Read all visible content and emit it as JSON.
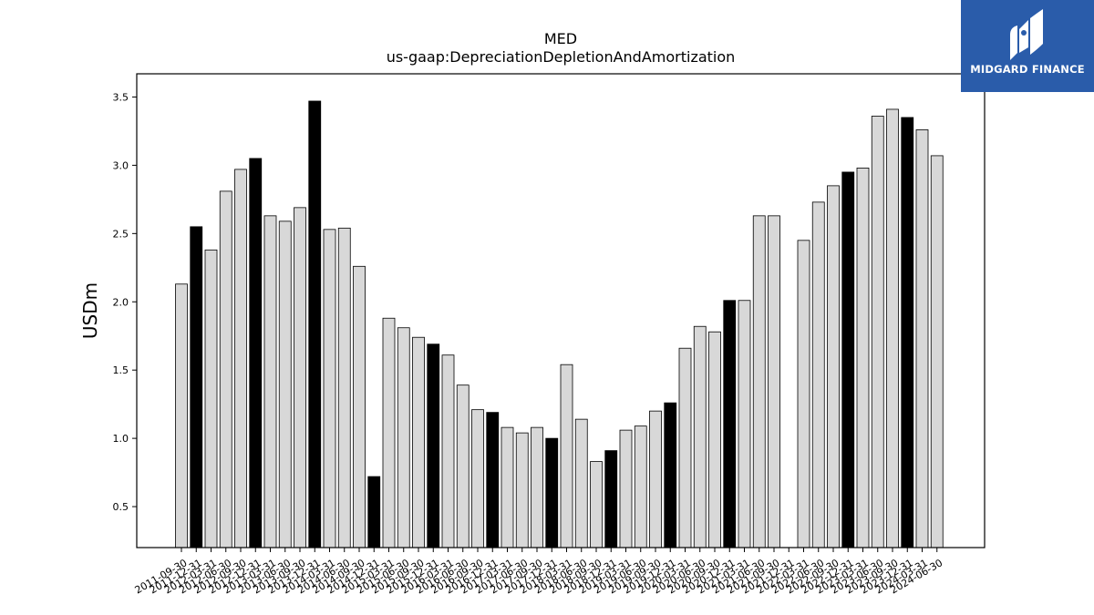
{
  "chart_data": {
    "type": "bar",
    "title": "MED",
    "subtitle": "us-gaap:DepreciationDepletionAndAmortization",
    "xlabel": "",
    "ylabel": "USDm",
    "ylim": [
      0.2,
      3.67
    ],
    "yticks": [
      "0.5",
      "1.0",
      "1.5",
      "2.0",
      "2.5",
      "3.0",
      "3.5"
    ],
    "grid": false,
    "colors": {
      "normal": "#d8d8d8",
      "highlight": "#000000",
      "edge": "#000000"
    },
    "categories": [
      "2011-09-30",
      "2011-12-31",
      "2012-03-31",
      "2012-06-30",
      "2012-09-30",
      "2012-12-31",
      "2013-03-31",
      "2013-06-30",
      "2013-09-30",
      "2013-12-31",
      "2014-03-31",
      "2014-06-30",
      "2014-09-30",
      "2014-12-31",
      "2015-03-31",
      "2015-06-30",
      "2015-09-30",
      "2015-12-31",
      "2016-03-31",
      "2016-06-30",
      "2016-09-30",
      "2016-12-31",
      "2017-03-31",
      "2017-06-30",
      "2017-09-30",
      "2017-12-31",
      "2018-03-31",
      "2018-06-30",
      "2018-09-30",
      "2018-12-31",
      "2019-03-31",
      "2019-06-30",
      "2019-09-30",
      "2019-12-31",
      "2020-03-31",
      "2020-06-30",
      "2020-09-30",
      "2020-12-31",
      "2021-03-31",
      "2021-06-30",
      "2021-09-30",
      "2021-12-31",
      "2022-03-31",
      "2022-06-30",
      "2022-09-30",
      "2022-12-31",
      "2023-03-31",
      "2023-06-30",
      "2023-09-30",
      "2023-12-31",
      "2024-03-31",
      "2024-06-30"
    ],
    "values": [
      2.13,
      2.55,
      2.38,
      2.81,
      2.97,
      3.05,
      2.63,
      2.59,
      2.69,
      3.47,
      2.53,
      2.54,
      2.26,
      0.72,
      1.88,
      1.81,
      1.74,
      1.69,
      1.61,
      1.39,
      1.21,
      1.19,
      1.08,
      1.04,
      1.08,
      1.0,
      1.54,
      1.14,
      0.83,
      0.91,
      1.06,
      1.09,
      1.2,
      1.26,
      1.66,
      1.82,
      1.78,
      2.01,
      2.01,
      2.63,
      2.63,
      null,
      2.45,
      2.73,
      2.85,
      2.95,
      2.98,
      3.36,
      3.41,
      3.35,
      3.26,
      3.07
    ],
    "highlight": [
      false,
      true,
      false,
      false,
      false,
      true,
      false,
      false,
      false,
      true,
      false,
      false,
      false,
      true,
      false,
      false,
      false,
      true,
      false,
      false,
      false,
      true,
      false,
      false,
      false,
      true,
      false,
      false,
      false,
      true,
      false,
      false,
      false,
      true,
      false,
      false,
      false,
      true,
      false,
      false,
      false,
      true,
      false,
      false,
      false,
      true,
      false,
      false,
      false,
      true,
      false,
      false
    ]
  },
  "logo": {
    "text": "MIDGARD FINANCE"
  }
}
